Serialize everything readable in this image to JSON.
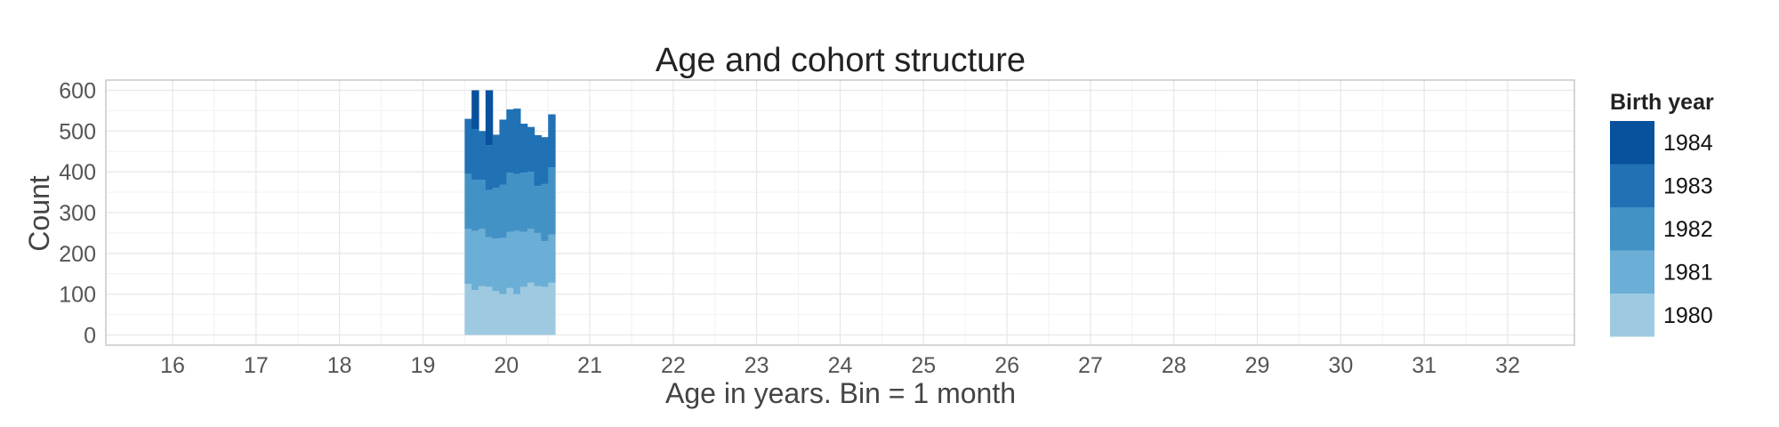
{
  "chart_data": {
    "type": "bar",
    "stacked": true,
    "title": "Age and cohort structure",
    "xlabel": "Age in years. Bin = 1 month",
    "ylabel": "Count",
    "xlim": [
      15.2,
      32.8
    ],
    "ylim": [
      -25,
      625
    ],
    "x_ticks": [
      "16",
      "17",
      "18",
      "19",
      "20",
      "21",
      "22",
      "23",
      "24",
      "25",
      "26",
      "27",
      "28",
      "29",
      "30",
      "31",
      "32"
    ],
    "y_ticks": [
      "0",
      "100",
      "200",
      "300",
      "400",
      "500",
      "600"
    ],
    "grid": true,
    "legend_position": "right",
    "legend_title": "Birth year",
    "x": [
      19.542,
      19.625,
      19.708,
      19.792,
      19.875,
      19.958,
      20.042,
      20.125,
      20.208,
      20.292,
      20.375,
      20.458,
      20.542
    ],
    "series": [
      {
        "name": "1980",
        "color": "#9ecae1",
        "values": [
          125,
          110,
          120,
          118,
          108,
          100,
          115,
          100,
          118,
          128,
          120,
          118,
          128
        ]
      },
      {
        "name": "1981",
        "color": "#6baed6",
        "values": [
          135,
          145,
          140,
          122,
          128,
          138,
          138,
          155,
          135,
          132,
          130,
          112,
          118
        ]
      },
      {
        "name": "1982",
        "color": "#4292c6",
        "values": [
          135,
          125,
          120,
          115,
          125,
          130,
          145,
          140,
          145,
          140,
          115,
          140,
          165
        ]
      },
      {
        "name": "1983",
        "color": "#2171b5",
        "values": [
          135,
          125,
          120,
          110,
          130,
          160,
          155,
          160,
          120,
          110,
          125,
          115,
          130
        ]
      },
      {
        "name": "1984",
        "color": "#08519c",
        "values": [
          0,
          95,
          0,
          135,
          0,
          0,
          0,
          0,
          0,
          0,
          0,
          0,
          0
        ]
      }
    ]
  }
}
